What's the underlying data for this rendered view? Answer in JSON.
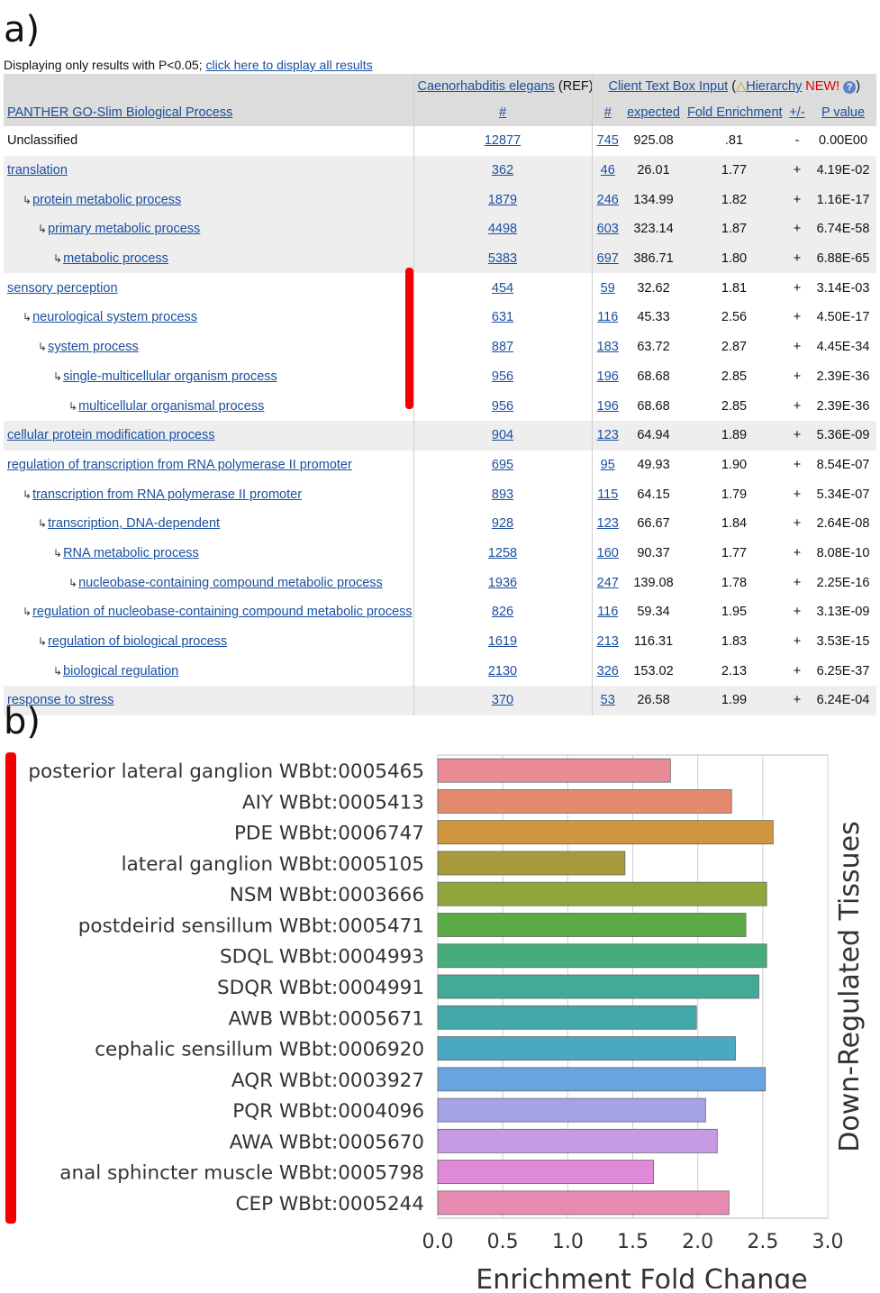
{
  "panel_a": {
    "label": "a)",
    "notice_text": "Displaying only results with P<0.05; ",
    "notice_link": "click here to display all results",
    "ref_header": "Caenorhabditis elegans",
    "ref_suffix": " (REF)",
    "client_header": "Client Text Box Input",
    "client_open": " (",
    "hierarchy_icon": "△",
    "hierarchy_label": "Hierarchy",
    "new_label": " NEW!",
    "help_icon": "?",
    "client_close": ")",
    "columns": {
      "process": "PANTHER GO-Slim Biological Process",
      "ref_count": "#",
      "count": "#",
      "expected": "expected",
      "fold": "Fold Enrichment",
      "sign": "+/-",
      "pvalue": "P value"
    },
    "rows": [
      {
        "name": "Unclassified",
        "indent": 0,
        "link": false,
        "shade": false,
        "ref": "12877",
        "count": "745",
        "expected": "925.08",
        "fold": ".81",
        "sign": "-",
        "p": "0.00E00"
      },
      {
        "name": "translation",
        "indent": 0,
        "link": true,
        "shade": true,
        "ref": "362",
        "count": "46",
        "expected": "26.01",
        "fold": "1.77",
        "sign": "+",
        "p": "4.19E-02"
      },
      {
        "name": "protein metabolic process",
        "indent": 1,
        "link": true,
        "shade": true,
        "ref": "1879",
        "count": "246",
        "expected": "134.99",
        "fold": "1.82",
        "sign": "+",
        "p": "1.16E-17"
      },
      {
        "name": "primary metabolic process",
        "indent": 2,
        "link": true,
        "shade": true,
        "ref": "4498",
        "count": "603",
        "expected": "323.14",
        "fold": "1.87",
        "sign": "+",
        "p": "6.74E-58"
      },
      {
        "name": "metabolic process",
        "indent": 3,
        "link": true,
        "shade": true,
        "ref": "5383",
        "count": "697",
        "expected": "386.71",
        "fold": "1.80",
        "sign": "+",
        "p": "6.88E-65"
      },
      {
        "name": "sensory perception",
        "indent": 0,
        "link": true,
        "shade": false,
        "ref": "454",
        "count": "59",
        "expected": "32.62",
        "fold": "1.81",
        "sign": "+",
        "p": "3.14E-03"
      },
      {
        "name": "neurological system process",
        "indent": 1,
        "link": true,
        "shade": false,
        "ref": "631",
        "count": "116",
        "expected": "45.33",
        "fold": "2.56",
        "sign": "+",
        "p": "4.50E-17"
      },
      {
        "name": "system process",
        "indent": 2,
        "link": true,
        "shade": false,
        "ref": "887",
        "count": "183",
        "expected": "63.72",
        "fold": "2.87",
        "sign": "+",
        "p": "4.45E-34"
      },
      {
        "name": "single-multicellular organism process",
        "indent": 3,
        "link": true,
        "shade": false,
        "ref": "956",
        "count": "196",
        "expected": "68.68",
        "fold": "2.85",
        "sign": "+",
        "p": "2.39E-36"
      },
      {
        "name": "multicellular organismal process",
        "indent": 4,
        "link": true,
        "shade": false,
        "ref": "956",
        "count": "196",
        "expected": "68.68",
        "fold": "2.85",
        "sign": "+",
        "p": "2.39E-36"
      },
      {
        "name": "cellular protein modification process",
        "indent": 0,
        "link": true,
        "shade": true,
        "ref": "904",
        "count": "123",
        "expected": "64.94",
        "fold": "1.89",
        "sign": "+",
        "p": "5.36E-09"
      },
      {
        "name": "regulation of transcription from RNA polymerase II promoter",
        "indent": 0,
        "link": true,
        "shade": false,
        "ref": "695",
        "count": "95",
        "expected": "49.93",
        "fold": "1.90",
        "sign": "+",
        "p": "8.54E-07"
      },
      {
        "name": "transcription from RNA polymerase II promoter",
        "indent": 1,
        "link": true,
        "shade": false,
        "ref": "893",
        "count": "115",
        "expected": "64.15",
        "fold": "1.79",
        "sign": "+",
        "p": "5.34E-07"
      },
      {
        "name": "transcription, DNA-dependent",
        "indent": 2,
        "link": true,
        "shade": false,
        "ref": "928",
        "count": "123",
        "expected": "66.67",
        "fold": "1.84",
        "sign": "+",
        "p": "2.64E-08"
      },
      {
        "name": "RNA metabolic process",
        "indent": 3,
        "link": true,
        "shade": false,
        "ref": "1258",
        "count": "160",
        "expected": "90.37",
        "fold": "1.77",
        "sign": "+",
        "p": "8.08E-10"
      },
      {
        "name": "nucleobase-containing compound metabolic process",
        "indent": 4,
        "link": true,
        "shade": false,
        "ref": "1936",
        "count": "247",
        "expected": "139.08",
        "fold": "1.78",
        "sign": "+",
        "p": "2.25E-16"
      },
      {
        "name": "regulation of nucleobase-containing compound metabolic process",
        "indent": 1,
        "link": true,
        "shade": false,
        "ref": "826",
        "count": "116",
        "expected": "59.34",
        "fold": "1.95",
        "sign": "+",
        "p": "3.13E-09"
      },
      {
        "name": "regulation of biological process",
        "indent": 2,
        "link": true,
        "shade": false,
        "ref": "1619",
        "count": "213",
        "expected": "116.31",
        "fold": "1.83",
        "sign": "+",
        "p": "3.53E-15"
      },
      {
        "name": "biological regulation",
        "indent": 3,
        "link": true,
        "shade": false,
        "ref": "2130",
        "count": "326",
        "expected": "153.02",
        "fold": "2.13",
        "sign": "+",
        "p": "6.25E-37"
      },
      {
        "name": "response to stress",
        "indent": 0,
        "link": true,
        "shade": true,
        "ref": "370",
        "count": "53",
        "expected": "26.58",
        "fold": "1.99",
        "sign": "+",
        "p": "6.24E-04"
      }
    ],
    "highlight_color": "#f20000"
  },
  "panel_b": {
    "label": "b)",
    "highlight_color": "#f20000"
  },
  "chart_data": {
    "type": "bar",
    "orientation": "horizontal",
    "categories": [
      "posterior lateral ganglion WBbt:0005465",
      "AIY WBbt:0005413",
      "PDE WBbt:0006747",
      "lateral ganglion WBbt:0005105",
      "NSM WBbt:0003666",
      "postdeirid sensillum WBbt:0005471",
      "SDQL WBbt:0004993",
      "SDQR WBbt:0004991",
      "AWB WBbt:0005671",
      "cephalic sensillum WBbt:0006920",
      "AQR WBbt:0003927",
      "PQR WBbt:0004096",
      "AWA WBbt:0005670",
      "anal sphincter muscle WBbt:0005798",
      "CEP WBbt:0005244"
    ],
    "values": [
      1.79,
      2.26,
      2.58,
      1.44,
      2.53,
      2.37,
      2.53,
      2.47,
      1.99,
      2.29,
      2.52,
      2.06,
      2.15,
      1.66,
      2.24
    ],
    "colors": [
      "#ea8c95",
      "#e48b6d",
      "#cf953f",
      "#a89a3c",
      "#8ea63a",
      "#5bac46",
      "#47ac7b",
      "#44aa98",
      "#43a9a8",
      "#4aa9c0",
      "#6aa4e0",
      "#a3a3e6",
      "#c69be4",
      "#df8ad8",
      "#e88bb2"
    ],
    "xlabel": "Enrichment Fold Change",
    "ylabel": "Down-Regulated Tissues",
    "xlim": [
      0.0,
      3.0
    ],
    "xticks": [
      "0.0",
      "0.5",
      "1.0",
      "1.5",
      "2.0",
      "2.5",
      "3.0"
    ],
    "grid": true
  }
}
